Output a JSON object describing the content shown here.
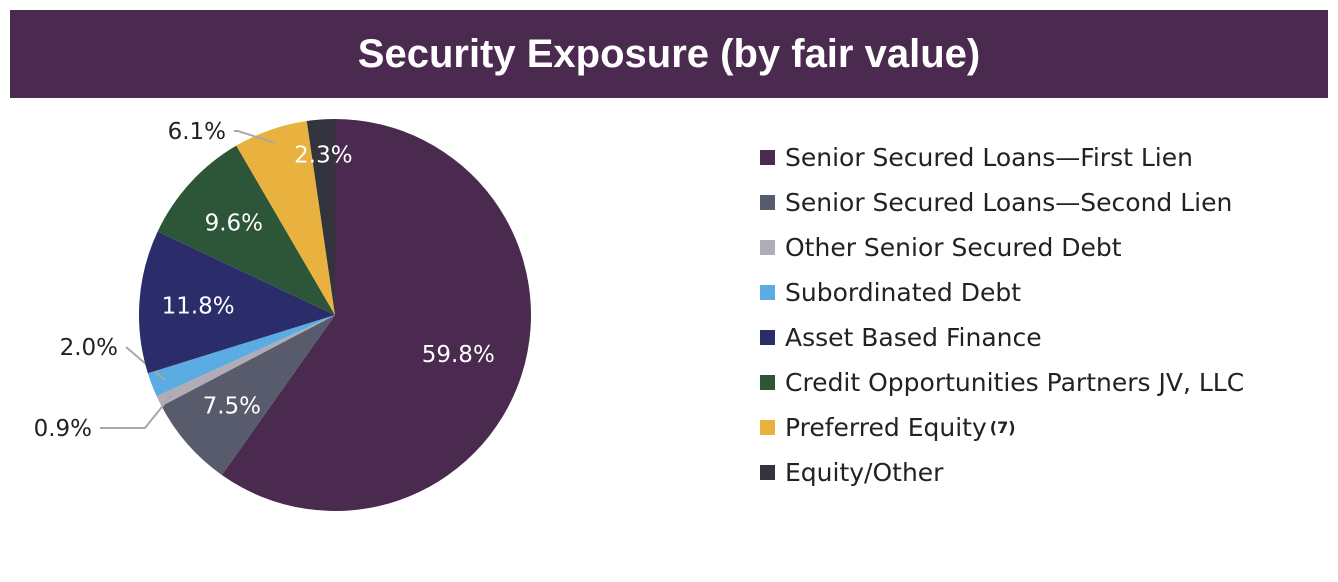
{
  "chart_data": {
    "type": "pie",
    "title": "Security Exposure (by fair value)",
    "slices": [
      {
        "name": "Senior Secured Loans—First Lien",
        "value": 59.8,
        "label": "59.8%",
        "color": "#4a2a4e",
        "label_color": "#ffffff"
      },
      {
        "name": "Senior Secured Loans—Second Lien",
        "value": 7.5,
        "label": "7.5%",
        "color": "#575b6b",
        "label_color": "#ffffff"
      },
      {
        "name": "Other Senior Secured Debt",
        "value": 0.9,
        "label": "0.9%",
        "color": "#b2acb4",
        "label_color": "#222222"
      },
      {
        "name": "Subordinated Debt",
        "value": 2.0,
        "label": "2.0%",
        "color": "#5aace2",
        "label_color": "#222222"
      },
      {
        "name": "Asset Based Finance",
        "value": 11.8,
        "label": "11.8%",
        "color": "#2b2c6a",
        "label_color": "#ffffff"
      },
      {
        "name": "Credit Opportunities Partners JV, LLC",
        "value": 9.6,
        "label": "9.6%",
        "color": "#2d5537",
        "label_color": "#ffffff"
      },
      {
        "name": "Preferred Equity",
        "note": "(7)",
        "value": 6.1,
        "label": "6.1%",
        "color": "#e9b23f",
        "label_color": "#222222"
      },
      {
        "name": "Equity/Other",
        "value": 2.3,
        "label": "2.3%",
        "color": "#34343e",
        "label_color": "#ffffff"
      }
    ],
    "start_angle": "12 o'clock",
    "direction": "clockwise",
    "legend_position": "right"
  }
}
